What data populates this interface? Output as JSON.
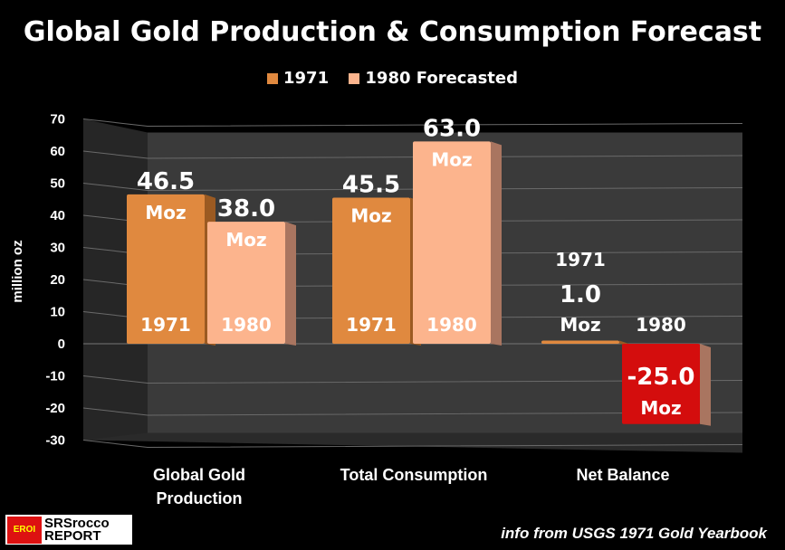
{
  "chart_data": {
    "type": "bar",
    "title": "Global Gold Production & Consumption Forecast",
    "ylabel": "million oz",
    "ylim": [
      -30,
      70
    ],
    "yticks": [
      70,
      60,
      50,
      40,
      30,
      20,
      10,
      0,
      -10,
      -20,
      -30
    ],
    "categories": [
      "Global Gold Production",
      "Total Consumption",
      "Net Balance"
    ],
    "category_lines": [
      [
        "Global Gold",
        "Production"
      ],
      [
        "Total Consumption"
      ],
      [
        "Net Balance"
      ]
    ],
    "series": [
      {
        "name": "1971",
        "color": "#e0893f",
        "values": [
          46.5,
          45.5,
          1.0
        ],
        "labels": [
          "46.5",
          "45.5",
          "1.0"
        ],
        "year_label": "1971"
      },
      {
        "name": "1980 Forecasted",
        "color": "#fcb48d",
        "values": [
          38.0,
          63.0,
          -25.0
        ],
        "labels": [
          "38.0",
          "63.0",
          "-25.0"
        ],
        "year_label": "1980"
      }
    ],
    "negative_color": "#d40d0d",
    "unit_label": "Moz",
    "grid": true,
    "legend": "top"
  },
  "source": "info from USGS 1971 Gold Yearbook",
  "logo": {
    "badge": "EROI",
    "line1": "SRSrocco",
    "line2": "REPORT"
  }
}
